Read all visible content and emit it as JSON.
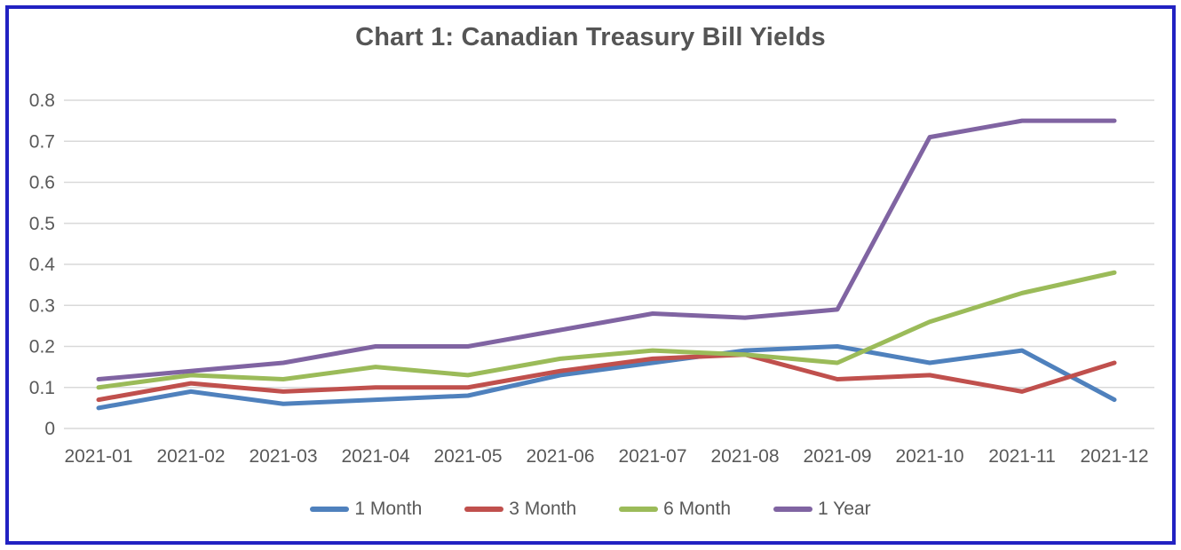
{
  "chart_data": {
    "type": "line",
    "title": "Chart 1: Canadian Treasury Bill Yields",
    "x": [
      "2021-01",
      "2021-02",
      "2021-03",
      "2021-04",
      "2021-05",
      "2021-06",
      "2021-07",
      "2021-08",
      "2021-09",
      "2021-10",
      "2021-11",
      "2021-12"
    ],
    "series": [
      {
        "name": "1 Month",
        "color": "#4F81BD",
        "values": [
          0.05,
          0.09,
          0.06,
          0.07,
          0.08,
          0.13,
          0.16,
          0.19,
          0.2,
          0.16,
          0.19,
          0.07
        ]
      },
      {
        "name": "3 Month",
        "color": "#C0504D",
        "values": [
          0.07,
          0.11,
          0.09,
          0.1,
          0.1,
          0.14,
          0.17,
          0.18,
          0.12,
          0.13,
          0.09,
          0.16
        ]
      },
      {
        "name": "6 Month",
        "color": "#9BBB59",
        "values": [
          0.1,
          0.13,
          0.12,
          0.15,
          0.13,
          0.17,
          0.19,
          0.18,
          0.16,
          0.26,
          0.33,
          0.38
        ]
      },
      {
        "name": "1 Year",
        "color": "#8064A2",
        "values": [
          0.12,
          0.14,
          0.16,
          0.2,
          0.2,
          0.24,
          0.28,
          0.27,
          0.29,
          0.71,
          0.75,
          0.75
        ]
      }
    ],
    "xlabel": "",
    "ylabel": "",
    "ylim": [
      0,
      0.8
    ],
    "yticks": [
      "0",
      "0.1",
      "0.2",
      "0.3",
      "0.4",
      "0.5",
      "0.6",
      "0.7",
      "0.8"
    ],
    "grid": true,
    "legend_position": "bottom"
  },
  "colors": {
    "border": "#2222C2",
    "grid": "#D9D9D9",
    "axis_text": "#595959",
    "title_text": "#555555"
  }
}
